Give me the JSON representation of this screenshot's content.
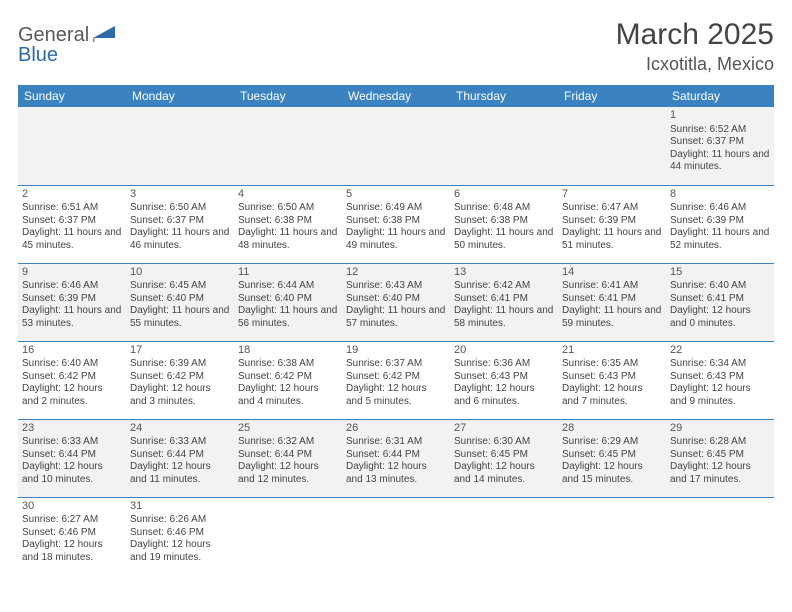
{
  "brand": {
    "name1": "General",
    "name2": "Blue"
  },
  "title": "March 2025",
  "location": "Icxotitla, Mexico",
  "colors": {
    "header_bg": "#3b83c0",
    "header_fg": "#ffffff",
    "row_border": "#3b83c0",
    "alt_row_bg": "#f2f2f2",
    "text": "#444444",
    "brand_gray": "#5a5a5a",
    "brand_blue": "#2e6aa8"
  },
  "day_headers": [
    "Sunday",
    "Monday",
    "Tuesday",
    "Wednesday",
    "Thursday",
    "Friday",
    "Saturday"
  ],
  "weeks": [
    [
      null,
      null,
      null,
      null,
      null,
      null,
      {
        "n": "1",
        "sr": "Sunrise: 6:52 AM",
        "ss": "Sunset: 6:37 PM",
        "dl": "Daylight: 11 hours and 44 minutes."
      }
    ],
    [
      {
        "n": "2",
        "sr": "Sunrise: 6:51 AM",
        "ss": "Sunset: 6:37 PM",
        "dl": "Daylight: 11 hours and 45 minutes."
      },
      {
        "n": "3",
        "sr": "Sunrise: 6:50 AM",
        "ss": "Sunset: 6:37 PM",
        "dl": "Daylight: 11 hours and 46 minutes."
      },
      {
        "n": "4",
        "sr": "Sunrise: 6:50 AM",
        "ss": "Sunset: 6:38 PM",
        "dl": "Daylight: 11 hours and 48 minutes."
      },
      {
        "n": "5",
        "sr": "Sunrise: 6:49 AM",
        "ss": "Sunset: 6:38 PM",
        "dl": "Daylight: 11 hours and 49 minutes."
      },
      {
        "n": "6",
        "sr": "Sunrise: 6:48 AM",
        "ss": "Sunset: 6:38 PM",
        "dl": "Daylight: 11 hours and 50 minutes."
      },
      {
        "n": "7",
        "sr": "Sunrise: 6:47 AM",
        "ss": "Sunset: 6:39 PM",
        "dl": "Daylight: 11 hours and 51 minutes."
      },
      {
        "n": "8",
        "sr": "Sunrise: 6:46 AM",
        "ss": "Sunset: 6:39 PM",
        "dl": "Daylight: 11 hours and 52 minutes."
      }
    ],
    [
      {
        "n": "9",
        "sr": "Sunrise: 6:46 AM",
        "ss": "Sunset: 6:39 PM",
        "dl": "Daylight: 11 hours and 53 minutes."
      },
      {
        "n": "10",
        "sr": "Sunrise: 6:45 AM",
        "ss": "Sunset: 6:40 PM",
        "dl": "Daylight: 11 hours and 55 minutes."
      },
      {
        "n": "11",
        "sr": "Sunrise: 6:44 AM",
        "ss": "Sunset: 6:40 PM",
        "dl": "Daylight: 11 hours and 56 minutes."
      },
      {
        "n": "12",
        "sr": "Sunrise: 6:43 AM",
        "ss": "Sunset: 6:40 PM",
        "dl": "Daylight: 11 hours and 57 minutes."
      },
      {
        "n": "13",
        "sr": "Sunrise: 6:42 AM",
        "ss": "Sunset: 6:41 PM",
        "dl": "Daylight: 11 hours and 58 minutes."
      },
      {
        "n": "14",
        "sr": "Sunrise: 6:41 AM",
        "ss": "Sunset: 6:41 PM",
        "dl": "Daylight: 11 hours and 59 minutes."
      },
      {
        "n": "15",
        "sr": "Sunrise: 6:40 AM",
        "ss": "Sunset: 6:41 PM",
        "dl": "Daylight: 12 hours and 0 minutes."
      }
    ],
    [
      {
        "n": "16",
        "sr": "Sunrise: 6:40 AM",
        "ss": "Sunset: 6:42 PM",
        "dl": "Daylight: 12 hours and 2 minutes."
      },
      {
        "n": "17",
        "sr": "Sunrise: 6:39 AM",
        "ss": "Sunset: 6:42 PM",
        "dl": "Daylight: 12 hours and 3 minutes."
      },
      {
        "n": "18",
        "sr": "Sunrise: 6:38 AM",
        "ss": "Sunset: 6:42 PM",
        "dl": "Daylight: 12 hours and 4 minutes."
      },
      {
        "n": "19",
        "sr": "Sunrise: 6:37 AM",
        "ss": "Sunset: 6:42 PM",
        "dl": "Daylight: 12 hours and 5 minutes."
      },
      {
        "n": "20",
        "sr": "Sunrise: 6:36 AM",
        "ss": "Sunset: 6:43 PM",
        "dl": "Daylight: 12 hours and 6 minutes."
      },
      {
        "n": "21",
        "sr": "Sunrise: 6:35 AM",
        "ss": "Sunset: 6:43 PM",
        "dl": "Daylight: 12 hours and 7 minutes."
      },
      {
        "n": "22",
        "sr": "Sunrise: 6:34 AM",
        "ss": "Sunset: 6:43 PM",
        "dl": "Daylight: 12 hours and 9 minutes."
      }
    ],
    [
      {
        "n": "23",
        "sr": "Sunrise: 6:33 AM",
        "ss": "Sunset: 6:44 PM",
        "dl": "Daylight: 12 hours and 10 minutes."
      },
      {
        "n": "24",
        "sr": "Sunrise: 6:33 AM",
        "ss": "Sunset: 6:44 PM",
        "dl": "Daylight: 12 hours and 11 minutes."
      },
      {
        "n": "25",
        "sr": "Sunrise: 6:32 AM",
        "ss": "Sunset: 6:44 PM",
        "dl": "Daylight: 12 hours and 12 minutes."
      },
      {
        "n": "26",
        "sr": "Sunrise: 6:31 AM",
        "ss": "Sunset: 6:44 PM",
        "dl": "Daylight: 12 hours and 13 minutes."
      },
      {
        "n": "27",
        "sr": "Sunrise: 6:30 AM",
        "ss": "Sunset: 6:45 PM",
        "dl": "Daylight: 12 hours and 14 minutes."
      },
      {
        "n": "28",
        "sr": "Sunrise: 6:29 AM",
        "ss": "Sunset: 6:45 PM",
        "dl": "Daylight: 12 hours and 15 minutes."
      },
      {
        "n": "29",
        "sr": "Sunrise: 6:28 AM",
        "ss": "Sunset: 6:45 PM",
        "dl": "Daylight: 12 hours and 17 minutes."
      }
    ],
    [
      {
        "n": "30",
        "sr": "Sunrise: 6:27 AM",
        "ss": "Sunset: 6:46 PM",
        "dl": "Daylight: 12 hours and 18 minutes."
      },
      {
        "n": "31",
        "sr": "Sunrise: 6:26 AM",
        "ss": "Sunset: 6:46 PM",
        "dl": "Daylight: 12 hours and 19 minutes."
      },
      null,
      null,
      null,
      null,
      null
    ]
  ]
}
